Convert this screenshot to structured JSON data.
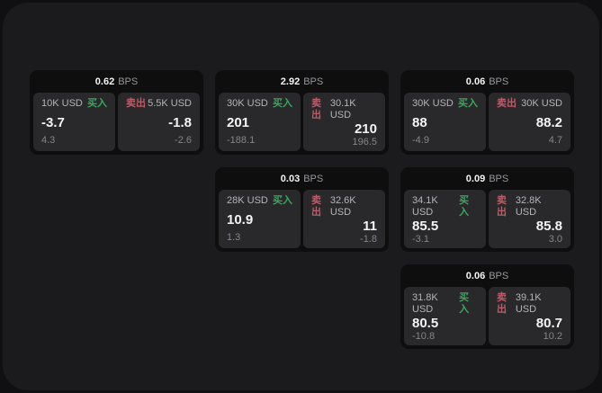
{
  "labels": {
    "bps_unit": "BPS",
    "buy": "买入",
    "sell": "卖出"
  },
  "colors": {
    "page_bg": "#101012",
    "panel_bg": "#1b1b1d",
    "card_bg": "#0e0e0f",
    "tile_bg": "#29292c",
    "buy_green": "#3aa85c",
    "sell_red": "#c05b66",
    "value_white": "#f4f4f5",
    "muted_gray": "#85858a"
  },
  "cards": [
    {
      "bps": "0.62",
      "buy": {
        "size": "10K USD",
        "value": "-3.7",
        "sub": "4.3"
      },
      "sell": {
        "size": "5.5K USD",
        "value": "-1.8",
        "sub": "-2.6"
      }
    },
    {
      "bps": "2.92",
      "buy": {
        "size": "30K USD",
        "value": "201",
        "sub": "-188.1"
      },
      "sell": {
        "size": "30.1K USD",
        "value": "210",
        "sub": "196.5"
      }
    },
    {
      "bps": "0.06",
      "buy": {
        "size": "30K USD",
        "value": "88",
        "sub": "-4.9"
      },
      "sell": {
        "size": "30K USD",
        "value": "88.2",
        "sub": "4.7"
      }
    },
    {
      "bps": "0.03",
      "buy": {
        "size": "28K USD",
        "value": "10.9",
        "sub": "1.3"
      },
      "sell": {
        "size": "32.6K USD",
        "value": "11",
        "sub": "-1.8"
      }
    },
    {
      "bps": "0.09",
      "buy": {
        "size": "34.1K USD",
        "value": "85.5",
        "sub": "-3.1"
      },
      "sell": {
        "size": "32.8K USD",
        "value": "85.8",
        "sub": "3.0"
      }
    },
    {
      "bps": "0.06",
      "buy": {
        "size": "31.8K USD",
        "value": "80.5",
        "sub": "-10.8"
      },
      "sell": {
        "size": "39.1K USD",
        "value": "80.7",
        "sub": "10.2"
      }
    }
  ]
}
